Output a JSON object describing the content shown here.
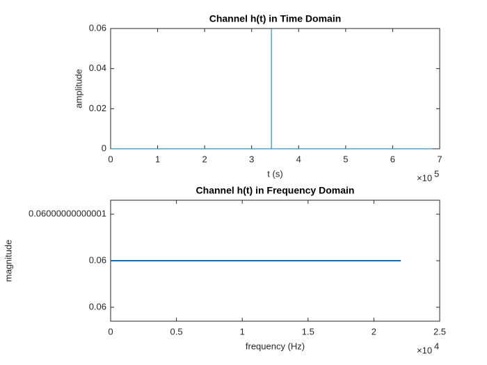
{
  "chart_data": [
    {
      "type": "line",
      "title": "Channel h(t) in Time Domain",
      "xlabel": "t (s)",
      "ylabel": "amplitude",
      "x_multiplier": {
        "base": "×10",
        "power": 5
      },
      "xlim": [
        0,
        7
      ],
      "xticks": [
        0,
        1,
        2,
        3,
        4,
        5,
        6,
        7
      ],
      "ylim": [
        0,
        0.06
      ],
      "yticks": [
        0,
        0.02,
        0.04,
        0.06
      ],
      "series": [
        {
          "color": "#0072bd",
          "x": [
            0,
            3.42,
            3.42,
            3.42,
            6.85
          ],
          "values": [
            0,
            0,
            0.06,
            0,
            0
          ]
        }
      ]
    },
    {
      "type": "line",
      "title": "Channel h(t) in Frequency Domain",
      "xlabel": "frequency (Hz)",
      "ylabel": "magnitude",
      "x_multiplier": {
        "base": "×10",
        "power": 4
      },
      "xlim": [
        0,
        2.5
      ],
      "xticks": [
        0,
        0.5,
        1,
        1.5,
        2,
        2.5
      ],
      "ylim": [
        0.059999999999987,
        0.060000000000013
      ],
      "yticks": [
        {
          "value": 0.05999999999999,
          "label": "0.06"
        },
        0.06,
        {
          "value": 0.06000000000001,
          "label": "0.06000000000001"
        }
      ],
      "series": [
        {
          "color": "#0072bd",
          "x": [
            0,
            2.205
          ],
          "values": [
            0.06,
            0.06
          ]
        }
      ]
    }
  ]
}
